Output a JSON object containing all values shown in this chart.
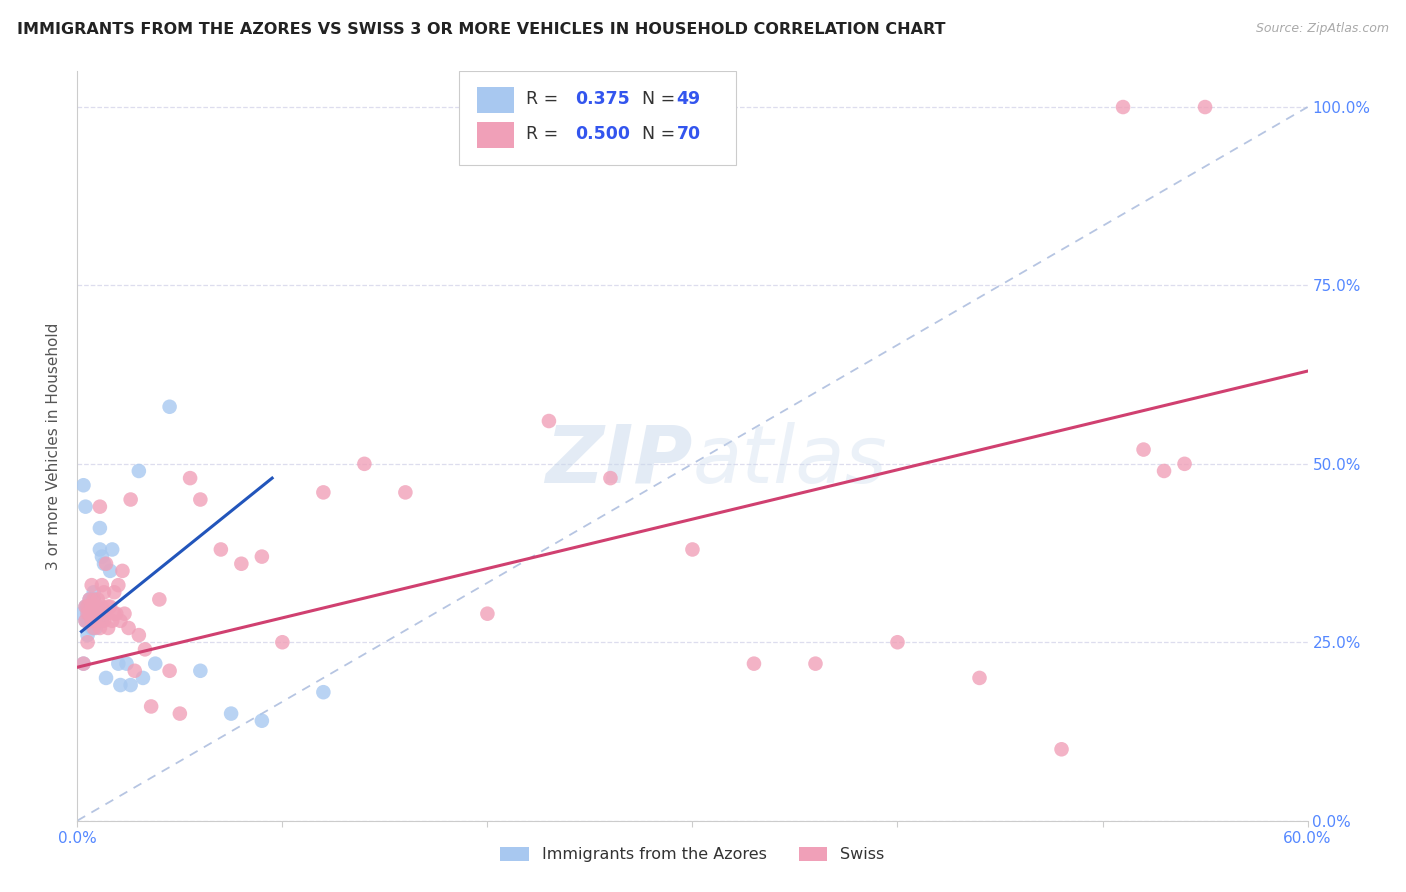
{
  "title": "IMMIGRANTS FROM THE AZORES VS SWISS 3 OR MORE VEHICLES IN HOUSEHOLD CORRELATION CHART",
  "source": "Source: ZipAtlas.com",
  "ylabel": "3 or more Vehicles in Household",
  "ytick_labels": [
    "0.0%",
    "25.0%",
    "50.0%",
    "75.0%",
    "100.0%"
  ],
  "ytick_values": [
    0.0,
    0.25,
    0.5,
    0.75,
    1.0
  ],
  "xmin": 0.0,
  "xmax": 0.6,
  "ymin": 0.0,
  "ymax": 1.05,
  "legend_label1": "Immigrants from the Azores",
  "legend_label2": "Swiss",
  "R1": "0.375",
  "N1": "49",
  "R2": "0.500",
  "N2": "70",
  "color_blue": "#A8C8F0",
  "color_pink": "#F0A0B8",
  "color_blue_line": "#2255BB",
  "color_pink_line": "#D04070",
  "color_diag": "#AABBDD",
  "title_color": "#222222",
  "source_color": "#AAAAAA",
  "axis_color": "#5588FF",
  "background_color": "#FFFFFF",
  "grid_color": "#DDDDEE",
  "blue_x": [
    0.002,
    0.003,
    0.003,
    0.004,
    0.004,
    0.004,
    0.005,
    0.005,
    0.005,
    0.005,
    0.006,
    0.006,
    0.006,
    0.006,
    0.007,
    0.007,
    0.007,
    0.007,
    0.007,
    0.008,
    0.008,
    0.008,
    0.008,
    0.008,
    0.009,
    0.009,
    0.009,
    0.01,
    0.01,
    0.011,
    0.011,
    0.012,
    0.012,
    0.013,
    0.014,
    0.016,
    0.017,
    0.02,
    0.021,
    0.024,
    0.026,
    0.03,
    0.032,
    0.038,
    0.045,
    0.06,
    0.075,
    0.09,
    0.12
  ],
  "blue_y": [
    0.29,
    0.22,
    0.47,
    0.44,
    0.3,
    0.28,
    0.29,
    0.3,
    0.28,
    0.26,
    0.3,
    0.28,
    0.29,
    0.31,
    0.29,
    0.28,
    0.31,
    0.3,
    0.27,
    0.31,
    0.3,
    0.29,
    0.28,
    0.32,
    0.29,
    0.28,
    0.27,
    0.29,
    0.3,
    0.41,
    0.38,
    0.37,
    0.28,
    0.36,
    0.2,
    0.35,
    0.38,
    0.22,
    0.19,
    0.22,
    0.19,
    0.49,
    0.2,
    0.22,
    0.58,
    0.21,
    0.15,
    0.14,
    0.18
  ],
  "pink_x": [
    0.003,
    0.004,
    0.004,
    0.005,
    0.005,
    0.005,
    0.006,
    0.006,
    0.007,
    0.007,
    0.007,
    0.008,
    0.008,
    0.008,
    0.009,
    0.009,
    0.01,
    0.01,
    0.01,
    0.011,
    0.011,
    0.012,
    0.012,
    0.013,
    0.013,
    0.014,
    0.014,
    0.015,
    0.015,
    0.016,
    0.017,
    0.018,
    0.018,
    0.019,
    0.02,
    0.021,
    0.022,
    0.023,
    0.025,
    0.026,
    0.028,
    0.03,
    0.033,
    0.036,
    0.04,
    0.045,
    0.05,
    0.055,
    0.06,
    0.07,
    0.08,
    0.09,
    0.1,
    0.12,
    0.14,
    0.16,
    0.2,
    0.23,
    0.26,
    0.3,
    0.33,
    0.36,
    0.4,
    0.44,
    0.48,
    0.51,
    0.52,
    0.53,
    0.54,
    0.55
  ],
  "pink_y": [
    0.22,
    0.3,
    0.28,
    0.25,
    0.3,
    0.29,
    0.29,
    0.31,
    0.3,
    0.33,
    0.28,
    0.29,
    0.31,
    0.27,
    0.29,
    0.3,
    0.28,
    0.31,
    0.29,
    0.27,
    0.44,
    0.33,
    0.3,
    0.28,
    0.32,
    0.36,
    0.29,
    0.3,
    0.27,
    0.3,
    0.28,
    0.32,
    0.29,
    0.29,
    0.33,
    0.28,
    0.35,
    0.29,
    0.27,
    0.45,
    0.21,
    0.26,
    0.24,
    0.16,
    0.31,
    0.21,
    0.15,
    0.48,
    0.45,
    0.38,
    0.36,
    0.37,
    0.25,
    0.46,
    0.5,
    0.46,
    0.29,
    0.56,
    0.48,
    0.38,
    0.22,
    0.22,
    0.25,
    0.2,
    0.1,
    1.0,
    0.52,
    0.49,
    0.5,
    1.0
  ],
  "blue_line_x": [
    0.002,
    0.095
  ],
  "blue_line_y": [
    0.265,
    0.48
  ],
  "pink_line_x": [
    0.0,
    0.6
  ],
  "pink_line_y": [
    0.215,
    0.63
  ],
  "diag_line_x": [
    0.0,
    0.6
  ],
  "diag_line_y": [
    0.0,
    1.0
  ]
}
